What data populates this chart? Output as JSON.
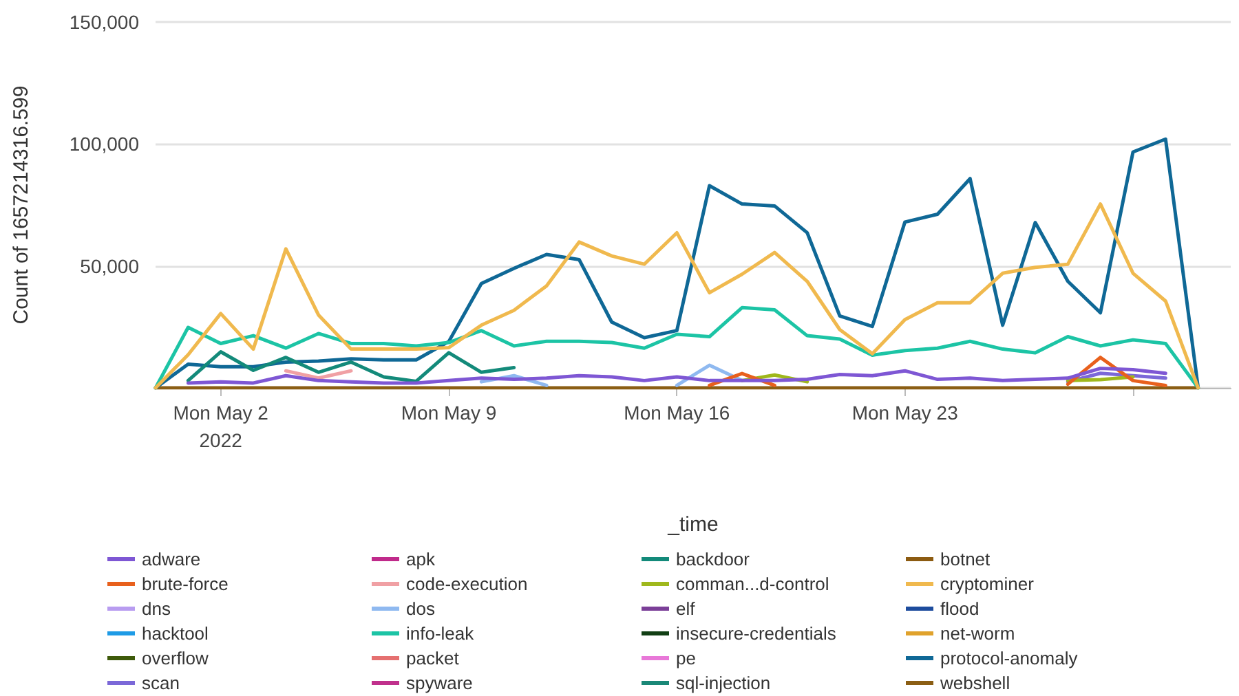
{
  "chart_data": {
    "type": "line",
    "xlabel": "_time",
    "ylabel": "Count of 1657214316.599",
    "x": [
      "2022-04-30",
      "2022-05-01",
      "2022-05-02",
      "2022-05-03",
      "2022-05-04",
      "2022-05-05",
      "2022-05-06",
      "2022-05-07",
      "2022-05-08",
      "2022-05-09",
      "2022-05-10",
      "2022-05-11",
      "2022-05-12",
      "2022-05-13",
      "2022-05-14",
      "2022-05-15",
      "2022-05-16",
      "2022-05-17",
      "2022-05-18",
      "2022-05-19",
      "2022-05-20",
      "2022-05-21",
      "2022-05-22",
      "2022-05-23",
      "2022-05-24",
      "2022-05-25",
      "2022-05-26",
      "2022-05-27",
      "2022-05-28",
      "2022-05-29",
      "2022-05-30",
      "2022-05-31",
      "2022-06-01"
    ],
    "xlim": [
      "2022-04-30",
      "2022-06-02"
    ],
    "xticks": [
      {
        "value": "2022-05-02",
        "label": "Mon May 2\n2022"
      },
      {
        "value": "2022-05-09",
        "label": "Mon May 9"
      },
      {
        "value": "2022-05-16",
        "label": "Mon May 16"
      },
      {
        "value": "2022-05-23",
        "label": "Mon May 23"
      },
      {
        "value": "2022-05-30",
        "label": null
      }
    ],
    "ylim": [
      0,
      150000
    ],
    "yticks": [
      {
        "value": 0,
        "label": null
      },
      {
        "value": 50000,
        "label": "50,000"
      },
      {
        "value": 100000,
        "label": "100,000"
      },
      {
        "value": 150000,
        "label": "150,000"
      }
    ],
    "grid": "y",
    "legend": "bottom",
    "marker": "none",
    "line_style": "solid",
    "series": [
      {
        "name": "adware",
        "color": "#7e57d4",
        "values": [
          null,
          2000,
          2500,
          2000,
          5000,
          3000,
          2500,
          2000,
          2000,
          3000,
          4000,
          3500,
          4000,
          5000,
          4500,
          3000,
          4500,
          3000,
          3000,
          3000,
          3500,
          5500,
          5000,
          7000,
          3500,
          4000,
          3000,
          3500,
          4000,
          8000,
          7500,
          6000,
          null
        ]
      },
      {
        "name": "apk",
        "color": "#c02a8b",
        "values": [
          null,
          null,
          null,
          null,
          null,
          null,
          null,
          null,
          null,
          null,
          null,
          null,
          null,
          null,
          null,
          null,
          null,
          null,
          null,
          null,
          null,
          null,
          null,
          null,
          null,
          null,
          null,
          null,
          null,
          null,
          null,
          null,
          null
        ]
      },
      {
        "name": "backdoor",
        "color": "#138a7a",
        "values": [
          null,
          3000,
          14800,
          7200,
          12500,
          6400,
          10600,
          4500,
          2700,
          14400,
          6400,
          8300,
          null,
          null,
          null,
          null,
          null,
          null,
          null,
          null,
          null,
          null,
          null,
          null,
          null,
          null,
          null,
          null,
          null,
          null,
          null,
          null,
          null
        ]
      },
      {
        "name": "botnet",
        "color": "#8c5b11",
        "values": [
          null,
          null,
          null,
          null,
          null,
          null,
          null,
          null,
          null,
          null,
          null,
          null,
          null,
          null,
          null,
          null,
          null,
          null,
          null,
          null,
          null,
          null,
          null,
          null,
          null,
          null,
          null,
          null,
          null,
          null,
          null,
          null,
          null
        ]
      },
      {
        "name": "brute-force",
        "color": "#e8601c",
        "values": [
          null,
          null,
          null,
          null,
          null,
          null,
          null,
          null,
          null,
          null,
          null,
          null,
          null,
          null,
          null,
          null,
          null,
          1000,
          5900,
          1000,
          null,
          null,
          null,
          null,
          null,
          null,
          null,
          null,
          1500,
          12500,
          3000,
          1000,
          null
        ]
      },
      {
        "name": "code-execution",
        "color": "#f0a0a4",
        "values": [
          null,
          null,
          null,
          null,
          7000,
          4000,
          7000,
          null,
          null,
          null,
          null,
          null,
          null,
          null,
          null,
          null,
          null,
          null,
          null,
          null,
          null,
          null,
          null,
          null,
          null,
          null,
          null,
          null,
          null,
          null,
          null,
          null,
          null
        ]
      },
      {
        "name": "comman...d-control",
        "color": "#9fb81c",
        "values": [
          null,
          null,
          null,
          null,
          null,
          null,
          null,
          null,
          null,
          null,
          null,
          null,
          null,
          null,
          null,
          null,
          null,
          null,
          3000,
          5300,
          2500,
          null,
          null,
          null,
          null,
          null,
          null,
          null,
          3000,
          3400,
          4500,
          null,
          null
        ]
      },
      {
        "name": "cryptominer",
        "color": "#f0b94e",
        "values": [
          0,
          13600,
          30500,
          15900,
          57000,
          29900,
          15900,
          15900,
          15900,
          16500,
          25700,
          31800,
          41800,
          59800,
          54100,
          50700,
          63600,
          39000,
          46600,
          55500,
          43700,
          23900,
          14000,
          28000,
          34900,
          34900,
          47000,
          49400,
          50700,
          75400,
          47000,
          35600,
          0
        ]
      },
      {
        "name": "dns",
        "color": "#b89cf0",
        "values": [
          null,
          null,
          null,
          null,
          null,
          null,
          null,
          null,
          null,
          null,
          null,
          null,
          null,
          null,
          null,
          null,
          null,
          null,
          null,
          null,
          null,
          null,
          null,
          null,
          null,
          null,
          null,
          null,
          null,
          null,
          null,
          null,
          null
        ]
      },
      {
        "name": "dos",
        "color": "#8fb9f0",
        "values": [
          null,
          null,
          null,
          null,
          null,
          null,
          null,
          null,
          null,
          null,
          2500,
          5000,
          1000,
          null,
          null,
          null,
          1000,
          9300,
          3000,
          null,
          null,
          null,
          null,
          null,
          null,
          null,
          null,
          null,
          null,
          null,
          null,
          null,
          null
        ]
      },
      {
        "name": "elf",
        "color": "#7b3f98",
        "values": [
          null,
          null,
          null,
          null,
          null,
          null,
          null,
          null,
          null,
          null,
          null,
          null,
          null,
          null,
          null,
          null,
          null,
          null,
          null,
          null,
          null,
          null,
          null,
          null,
          null,
          null,
          null,
          null,
          null,
          null,
          null,
          null,
          null
        ]
      },
      {
        "name": "flood",
        "color": "#1d4c9d",
        "values": [
          null,
          null,
          null,
          null,
          null,
          null,
          null,
          null,
          null,
          null,
          null,
          null,
          null,
          null,
          null,
          null,
          null,
          null,
          null,
          null,
          null,
          null,
          null,
          null,
          null,
          null,
          null,
          null,
          null,
          null,
          null,
          null,
          null
        ]
      },
      {
        "name": "hacktool",
        "color": "#1e9be6",
        "values": [
          null,
          null,
          null,
          null,
          null,
          null,
          null,
          null,
          null,
          null,
          null,
          null,
          null,
          null,
          null,
          null,
          null,
          null,
          null,
          null,
          null,
          null,
          null,
          null,
          null,
          null,
          null,
          null,
          null,
          null,
          null,
          null,
          null
        ]
      },
      {
        "name": "info-leak",
        "color": "#1cc4a5",
        "values": [
          0,
          24800,
          18200,
          21400,
          16300,
          22300,
          18200,
          18200,
          17200,
          18600,
          23500,
          17200,
          19100,
          19100,
          18600,
          16300,
          22000,
          21000,
          32900,
          32000,
          21400,
          20000,
          13400,
          15300,
          16300,
          19100,
          15900,
          14400,
          21000,
          17200,
          19700,
          18200,
          0
        ]
      },
      {
        "name": "insecure-credentials",
        "color": "#123f14",
        "values": [
          null,
          null,
          null,
          null,
          null,
          null,
          null,
          null,
          null,
          null,
          null,
          null,
          null,
          null,
          null,
          null,
          null,
          null,
          null,
          null,
          null,
          null,
          null,
          null,
          null,
          null,
          null,
          null,
          null,
          null,
          null,
          null,
          null
        ]
      },
      {
        "name": "net-worm",
        "color": "#e0a22c",
        "values": [
          null,
          null,
          null,
          null,
          null,
          null,
          null,
          null,
          null,
          null,
          null,
          null,
          null,
          null,
          null,
          null,
          null,
          null,
          null,
          null,
          null,
          null,
          null,
          null,
          null,
          null,
          null,
          null,
          null,
          null,
          null,
          null,
          null
        ]
      },
      {
        "name": "overflow",
        "color": "#3e5a0a",
        "values": [
          null,
          null,
          null,
          null,
          null,
          null,
          null,
          null,
          null,
          null,
          null,
          null,
          null,
          null,
          null,
          null,
          null,
          null,
          null,
          null,
          null,
          null,
          null,
          null,
          null,
          null,
          null,
          null,
          null,
          null,
          null,
          null,
          null
        ]
      },
      {
        "name": "packet",
        "color": "#e57070",
        "values": [
          null,
          null,
          null,
          null,
          null,
          null,
          null,
          null,
          null,
          null,
          null,
          null,
          null,
          null,
          null,
          null,
          null,
          null,
          null,
          null,
          null,
          null,
          null,
          null,
          null,
          null,
          null,
          null,
          null,
          null,
          null,
          null,
          null
        ]
      },
      {
        "name": "pe",
        "color": "#e878d8",
        "values": [
          null,
          null,
          null,
          null,
          null,
          null,
          null,
          null,
          null,
          null,
          null,
          null,
          null,
          null,
          null,
          null,
          null,
          null,
          null,
          null,
          null,
          null,
          null,
          null,
          null,
          null,
          null,
          null,
          null,
          null,
          null,
          null,
          null
        ]
      },
      {
        "name": "protocol-anomaly",
        "color": "#0f6896",
        "values": [
          0,
          9700,
          8700,
          8700,
          10600,
          11000,
          11900,
          11500,
          11500,
          19000,
          42800,
          49000,
          54700,
          52600,
          27000,
          20600,
          23500,
          82900,
          75400,
          74600,
          63600,
          29500,
          25200,
          68000,
          71200,
          85800,
          25700,
          67800,
          43700,
          30800,
          96700,
          102000,
          0
        ]
      },
      {
        "name": "scan",
        "color": "#7b68d8",
        "values": [
          null,
          null,
          null,
          null,
          null,
          null,
          null,
          null,
          null,
          null,
          null,
          null,
          null,
          null,
          null,
          null,
          null,
          null,
          null,
          null,
          null,
          null,
          null,
          null,
          null,
          null,
          null,
          null,
          2500,
          6000,
          5000,
          4000,
          null
        ]
      },
      {
        "name": "spyware",
        "color": "#c0308c",
        "values": [
          null,
          null,
          null,
          null,
          null,
          null,
          null,
          null,
          null,
          null,
          null,
          null,
          null,
          null,
          null,
          null,
          null,
          null,
          null,
          null,
          null,
          null,
          null,
          null,
          null,
          null,
          null,
          null,
          null,
          null,
          null,
          null,
          null
        ]
      },
      {
        "name": "sql-injection",
        "color": "#1a8877",
        "values": [
          null,
          null,
          null,
          null,
          null,
          null,
          null,
          null,
          null,
          null,
          null,
          null,
          null,
          null,
          null,
          null,
          null,
          null,
          null,
          null,
          null,
          null,
          null,
          null,
          null,
          null,
          null,
          null,
          null,
          null,
          null,
          null,
          null
        ]
      },
      {
        "name": "webshell",
        "color": "#8b5e14",
        "values": [
          0,
          0,
          0,
          0,
          0,
          0,
          0,
          0,
          0,
          0,
          0,
          0,
          0,
          0,
          0,
          0,
          0,
          0,
          0,
          0,
          0,
          0,
          0,
          0,
          0,
          0,
          0,
          0,
          0,
          0,
          0,
          0,
          0
        ]
      }
    ]
  }
}
